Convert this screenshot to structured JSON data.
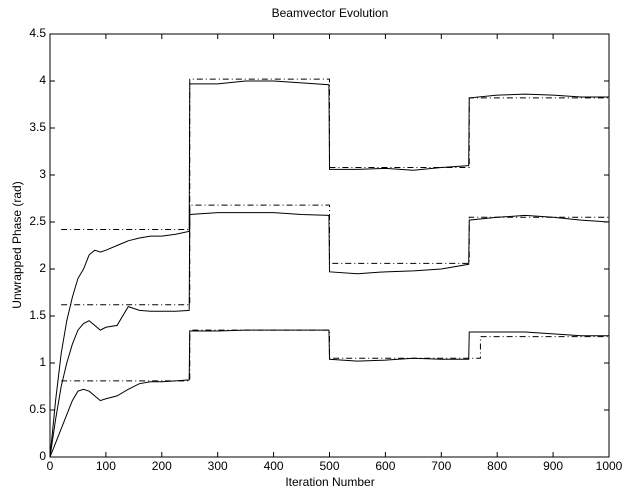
{
  "chart_data": {
    "type": "line",
    "title": "Beamvector Evolution",
    "xlabel": "Iteration Number",
    "ylabel": "Unwrapped Phase (rad)",
    "xlim": [
      0,
      1000
    ],
    "ylim": [
      0,
      4.5
    ],
    "xticks": [
      0,
      100,
      200,
      300,
      400,
      500,
      600,
      700,
      800,
      900,
      1000
    ],
    "yticks": [
      0,
      0.5,
      1,
      1.5,
      2,
      2.5,
      3,
      3.5,
      4,
      4.5
    ],
    "grid": false,
    "series": [
      {
        "color": "#000000",
        "style": "solid",
        "x": [
          0,
          10,
          20,
          30,
          40,
          50,
          60,
          70,
          80,
          90,
          100,
          120,
          140,
          160,
          180,
          200,
          225,
          249,
          250,
          300,
          350,
          400,
          450,
          499,
          500,
          550,
          600,
          650,
          700,
          749,
          750,
          800,
          850,
          900,
          950,
          1000
        ],
        "values": [
          0,
          0.6,
          1.1,
          1.45,
          1.7,
          1.9,
          2.0,
          2.15,
          2.2,
          2.18,
          2.2,
          2.25,
          2.3,
          2.33,
          2.35,
          2.35,
          2.37,
          2.4,
          3.97,
          3.97,
          4.0,
          4.0,
          3.98,
          3.96,
          3.06,
          3.06,
          3.07,
          3.05,
          3.08,
          3.1,
          3.82,
          3.85,
          3.86,
          3.85,
          3.83,
          3.83
        ]
      },
      {
        "color": "#000000",
        "style": "solid",
        "x": [
          0,
          10,
          20,
          30,
          40,
          50,
          60,
          70,
          80,
          90,
          100,
          120,
          140,
          160,
          180,
          200,
          225,
          249,
          250,
          300,
          350,
          400,
          450,
          499,
          500,
          550,
          600,
          650,
          700,
          749,
          750,
          800,
          850,
          900,
          950,
          1000
        ],
        "values": [
          0,
          0.4,
          0.75,
          1.0,
          1.2,
          1.35,
          1.42,
          1.45,
          1.4,
          1.35,
          1.38,
          1.4,
          1.6,
          1.56,
          1.55,
          1.55,
          1.55,
          1.56,
          2.58,
          2.6,
          2.6,
          2.6,
          2.58,
          2.57,
          1.97,
          1.95,
          1.97,
          1.98,
          2.0,
          2.05,
          2.52,
          2.55,
          2.57,
          2.55,
          2.52,
          2.5
        ]
      },
      {
        "color": "#000000",
        "style": "solid",
        "x": [
          0,
          10,
          20,
          30,
          40,
          50,
          60,
          70,
          80,
          90,
          100,
          120,
          140,
          160,
          180,
          200,
          225,
          249,
          250,
          300,
          350,
          400,
          450,
          499,
          500,
          550,
          600,
          650,
          700,
          749,
          750,
          800,
          850,
          900,
          950,
          1000
        ],
        "values": [
          0,
          0.15,
          0.3,
          0.45,
          0.6,
          0.7,
          0.72,
          0.7,
          0.65,
          0.6,
          0.62,
          0.65,
          0.72,
          0.78,
          0.8,
          0.8,
          0.81,
          0.82,
          1.34,
          1.34,
          1.35,
          1.35,
          1.35,
          1.35,
          1.04,
          1.02,
          1.03,
          1.05,
          1.04,
          1.04,
          1.33,
          1.33,
          1.33,
          1.31,
          1.29,
          1.29
        ]
      },
      {
        "color": "#000000",
        "style": "dashdot",
        "x": [
          20,
          250,
          250,
          500,
          500,
          750,
          750,
          1000
        ],
        "values": [
          2.42,
          2.42,
          4.02,
          4.02,
          3.08,
          3.08,
          3.82,
          3.82
        ]
      },
      {
        "color": "#000000",
        "style": "dashdot",
        "x": [
          20,
          250,
          250,
          500,
          500,
          750,
          750,
          1000
        ],
        "values": [
          1.62,
          1.62,
          2.68,
          2.68,
          2.06,
          2.06,
          2.55,
          2.55
        ]
      },
      {
        "color": "#000000",
        "style": "dashdot",
        "x": [
          20,
          250,
          250,
          500,
          500,
          770,
          770,
          1000
        ],
        "values": [
          0.81,
          0.81,
          1.35,
          1.35,
          1.05,
          1.05,
          1.28,
          1.28
        ]
      }
    ]
  }
}
